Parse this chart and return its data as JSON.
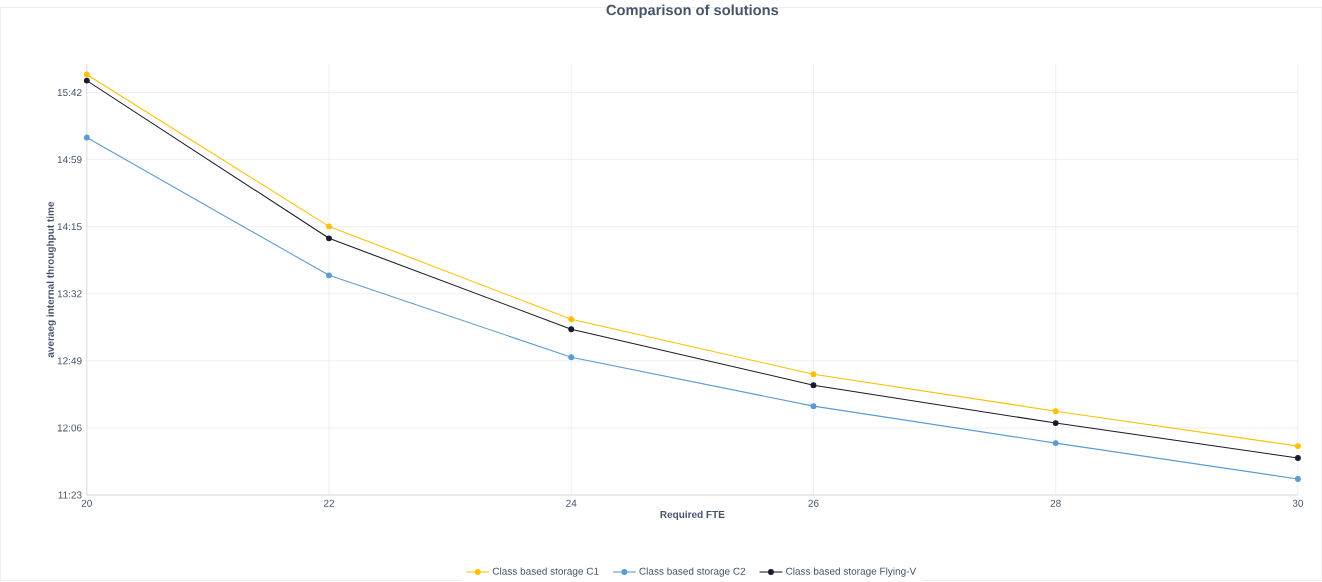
{
  "chart_data": {
    "type": "line",
    "title": "Comparison of solutions",
    "xlabel": "Required FTE",
    "ylabel": "averaeg internal throughput time",
    "x": [
      20,
      22,
      24,
      26,
      28,
      30
    ],
    "series": [
      {
        "name": "Class based storage C1",
        "color": "#ffc000",
        "values": [
          15.889,
          14.259,
          13.263,
          12.673,
          12.276,
          11.901
        ]
      },
      {
        "name": "Class based storage C2",
        "color": "#5b9bd5",
        "values": [
          15.213,
          13.734,
          12.855,
          12.33,
          11.933,
          11.548
        ]
      },
      {
        "name": "Class based storage Flying-V",
        "color": "#1a1a2e",
        "values": [
          15.824,
          14.131,
          13.155,
          12.555,
          12.148,
          11.773
        ]
      }
    ],
    "xlim": [
      20,
      30
    ],
    "xticks": [
      20,
      22,
      24,
      26,
      28,
      30
    ],
    "ylim": [
      11.376,
      16.0
    ],
    "yticks": [
      {
        "value": 11.376,
        "label": "11:23"
      },
      {
        "value": 12.096,
        "label": "12:06"
      },
      {
        "value": 12.816,
        "label": "12:49"
      },
      {
        "value": 13.536,
        "label": "13:32"
      },
      {
        "value": 14.256,
        "label": "14:15"
      },
      {
        "value": 14.976,
        "label": "14:59"
      },
      {
        "value": 15.696,
        "label": "15:42"
      }
    ],
    "grid": true,
    "legend": "bottom",
    "marker": "circle",
    "line_style": "solid"
  }
}
